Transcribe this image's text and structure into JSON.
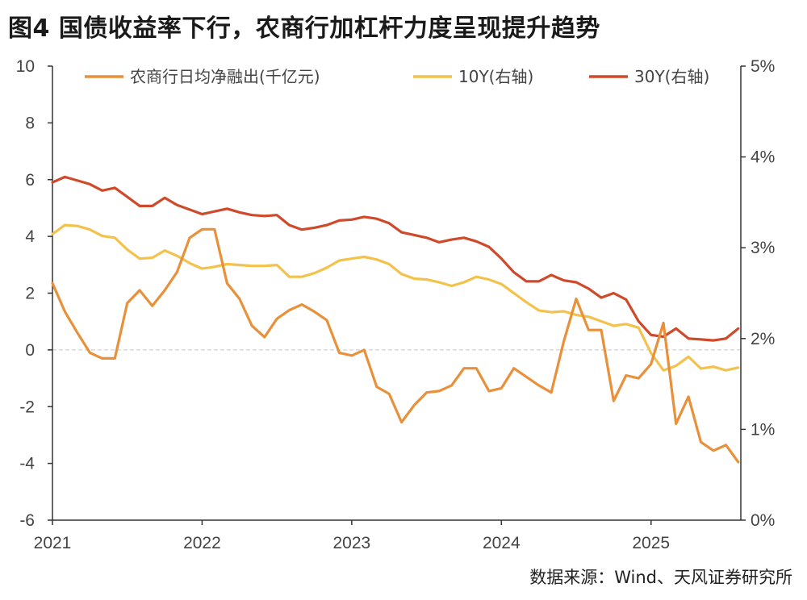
{
  "title": "图4  国债收益率下行，农商行加杠杆力度呈现提升趋势",
  "source": "数据来源：Wind、天风证券研究所",
  "colors": {
    "net_financing": "#e8903a",
    "y10": "#f3c24c",
    "y30": "#cf4a2a",
    "axis": "#333333",
    "zero_line": "#d9d9d9"
  },
  "chart_data": {
    "type": "line",
    "title": "",
    "xlabel": "",
    "ylabel": "",
    "x_ticks": [
      "2021",
      "2022",
      "2023",
      "2024",
      "2025"
    ],
    "x_range": [
      2021.0,
      2025.6
    ],
    "left_axis": {
      "ylim": [
        -6,
        10
      ],
      "ticks": [
        "-6",
        "-4",
        "-2",
        "0",
        "2",
        "4",
        "6",
        "8",
        "10"
      ]
    },
    "right_axis": {
      "ylim": [
        0,
        5
      ],
      "ticks": [
        "0%",
        "1%",
        "2%",
        "3%",
        "4%",
        "5%"
      ]
    },
    "legend_position": "top",
    "series": [
      {
        "name": "农商行日均净融出(千亿元)",
        "axis": "left",
        "x": [
          2021.0,
          2021.083,
          2021.167,
          2021.25,
          2021.333,
          2021.417,
          2021.5,
          2021.583,
          2021.667,
          2021.75,
          2021.833,
          2021.917,
          2022.0,
          2022.083,
          2022.167,
          2022.25,
          2022.333,
          2022.417,
          2022.5,
          2022.583,
          2022.667,
          2022.75,
          2022.833,
          2022.917,
          2023.0,
          2023.083,
          2023.167,
          2023.25,
          2023.333,
          2023.417,
          2023.5,
          2023.583,
          2023.667,
          2023.75,
          2023.833,
          2023.917,
          2024.0,
          2024.083,
          2024.167,
          2024.25,
          2024.333,
          2024.417,
          2024.5,
          2024.583,
          2024.667,
          2024.75,
          2024.833,
          2024.917,
          2025.0,
          2025.083,
          2025.167,
          2025.25,
          2025.333,
          2025.417,
          2025.5,
          2025.583
        ],
        "values": [
          2.35,
          1.35,
          0.6,
          -0.1,
          -0.3,
          -0.3,
          1.65,
          2.1,
          1.55,
          2.1,
          2.75,
          3.95,
          4.25,
          4.25,
          2.35,
          1.8,
          0.85,
          0.45,
          1.1,
          1.4,
          1.6,
          1.35,
          1.05,
          -0.1,
          -0.2,
          0.0,
          -1.3,
          -1.55,
          -2.55,
          -1.95,
          -1.5,
          -1.45,
          -1.25,
          -0.65,
          -0.65,
          -1.45,
          -1.35,
          -0.65,
          -0.95,
          -1.25,
          -1.5,
          0.3,
          1.8,
          0.7,
          0.7,
          -1.8,
          -0.9,
          -1.0,
          -0.5,
          0.95,
          -2.6,
          -1.65,
          -3.25,
          -3.55,
          -3.35,
          -3.95
        ]
      },
      {
        "name": "10Y(右轴)",
        "axis": "right",
        "x": [
          2021.0,
          2021.083,
          2021.167,
          2021.25,
          2021.333,
          2021.417,
          2021.5,
          2021.583,
          2021.667,
          2021.75,
          2021.833,
          2021.917,
          2022.0,
          2022.083,
          2022.167,
          2022.25,
          2022.333,
          2022.417,
          2022.5,
          2022.583,
          2022.667,
          2022.75,
          2022.833,
          2022.917,
          2023.0,
          2023.083,
          2023.167,
          2023.25,
          2023.333,
          2023.417,
          2023.5,
          2023.583,
          2023.667,
          2023.75,
          2023.833,
          2023.917,
          2024.0,
          2024.083,
          2024.167,
          2024.25,
          2024.333,
          2024.417,
          2024.5,
          2024.583,
          2024.667,
          2024.75,
          2024.833,
          2024.917,
          2025.0,
          2025.083,
          2025.167,
          2025.25,
          2025.333,
          2025.417,
          2025.5,
          2025.583
        ],
        "values": [
          3.15,
          3.25,
          3.24,
          3.2,
          3.13,
          3.11,
          2.98,
          2.88,
          2.89,
          2.97,
          2.91,
          2.83,
          2.77,
          2.79,
          2.82,
          2.81,
          2.8,
          2.8,
          2.81,
          2.68,
          2.68,
          2.72,
          2.78,
          2.86,
          2.88,
          2.9,
          2.87,
          2.82,
          2.71,
          2.66,
          2.65,
          2.62,
          2.58,
          2.62,
          2.68,
          2.65,
          2.6,
          2.5,
          2.4,
          2.31,
          2.29,
          2.3,
          2.26,
          2.24,
          2.19,
          2.14,
          2.16,
          2.12,
          1.84,
          1.65,
          1.7,
          1.8,
          1.67,
          1.69,
          1.65,
          1.68
        ]
      },
      {
        "name": "30Y(右轴)",
        "axis": "right",
        "x": [
          2021.0,
          2021.083,
          2021.167,
          2021.25,
          2021.333,
          2021.417,
          2021.5,
          2021.583,
          2021.667,
          2021.75,
          2021.833,
          2021.917,
          2022.0,
          2022.083,
          2022.167,
          2022.25,
          2022.333,
          2022.417,
          2022.5,
          2022.583,
          2022.667,
          2022.75,
          2022.833,
          2022.917,
          2023.0,
          2023.083,
          2023.167,
          2023.25,
          2023.333,
          2023.417,
          2023.5,
          2023.583,
          2023.667,
          2023.75,
          2023.833,
          2023.917,
          2024.0,
          2024.083,
          2024.167,
          2024.25,
          2024.333,
          2024.417,
          2024.5,
          2024.583,
          2024.667,
          2024.75,
          2024.833,
          2024.917,
          2025.0,
          2025.083,
          2025.167,
          2025.25,
          2025.333,
          2025.417,
          2025.5,
          2025.583
        ],
        "values": [
          3.72,
          3.78,
          3.74,
          3.7,
          3.63,
          3.66,
          3.56,
          3.46,
          3.46,
          3.55,
          3.47,
          3.42,
          3.37,
          3.4,
          3.43,
          3.39,
          3.36,
          3.35,
          3.36,
          3.25,
          3.2,
          3.22,
          3.25,
          3.3,
          3.31,
          3.34,
          3.32,
          3.27,
          3.17,
          3.14,
          3.11,
          3.06,
          3.09,
          3.11,
          3.07,
          3.01,
          2.88,
          2.73,
          2.63,
          2.63,
          2.7,
          2.64,
          2.62,
          2.55,
          2.45,
          2.5,
          2.43,
          2.19,
          2.04,
          2.02,
          2.11,
          2.0,
          1.99,
          1.98,
          2.0,
          2.11
        ]
      }
    ]
  }
}
